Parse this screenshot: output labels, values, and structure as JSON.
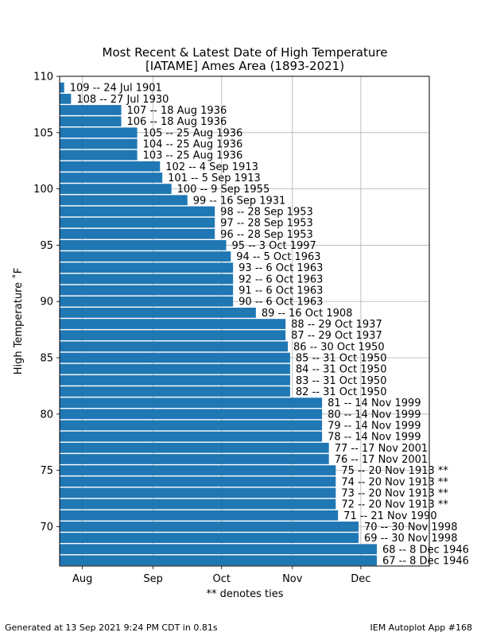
{
  "chart_data": {
    "type": "bar",
    "orientation": "horizontal",
    "title": "Most Recent & Latest Date of High Temperature",
    "subtitle": "[IATAME] Ames Area (1893-2021)",
    "xlabel": "** denotes ties",
    "ylabel": "High Temperature ˚F",
    "ylim": [
      66.5,
      110
    ],
    "yticks": [
      70,
      75,
      80,
      85,
      90,
      95,
      100,
      105,
      110
    ],
    "xlim": [
      "2000-07-22",
      "2000-12-31"
    ],
    "xticks": [
      {
        "date": "2000-08-01",
        "label": "Aug"
      },
      {
        "date": "2000-09-01",
        "label": "Sep"
      },
      {
        "date": "2000-10-01",
        "label": "Oct"
      },
      {
        "date": "2000-11-01",
        "label": "Nov"
      },
      {
        "date": "2000-12-01",
        "label": "Dec"
      }
    ],
    "grid": true,
    "bar_color": "#1f77b4",
    "bars": [
      {
        "temp": 109,
        "date": "2000-07-24",
        "label": "109 -- 24 Jul 1901"
      },
      {
        "temp": 108,
        "date": "2000-07-27",
        "label": "108 -- 27 Jul 1930"
      },
      {
        "temp": 107,
        "date": "2000-08-18",
        "label": "107 -- 18 Aug 1936"
      },
      {
        "temp": 106,
        "date": "2000-08-18",
        "label": "106 -- 18 Aug 1936"
      },
      {
        "temp": 105,
        "date": "2000-08-25",
        "label": "105 -- 25 Aug 1936"
      },
      {
        "temp": 104,
        "date": "2000-08-25",
        "label": "104 -- 25 Aug 1936"
      },
      {
        "temp": 103,
        "date": "2000-08-25",
        "label": "103 -- 25 Aug 1936"
      },
      {
        "temp": 102,
        "date": "2000-09-04",
        "label": "102 -- 4 Sep 1913"
      },
      {
        "temp": 101,
        "date": "2000-09-05",
        "label": "101 -- 5 Sep 1913"
      },
      {
        "temp": 100,
        "date": "2000-09-09",
        "label": "100 -- 9 Sep 1955"
      },
      {
        "temp": 99,
        "date": "2000-09-16",
        "label": "99 -- 16 Sep 1931"
      },
      {
        "temp": 98,
        "date": "2000-09-28",
        "label": "98 -- 28 Sep 1953"
      },
      {
        "temp": 97,
        "date": "2000-09-28",
        "label": "97 -- 28 Sep 1953"
      },
      {
        "temp": 96,
        "date": "2000-09-28",
        "label": "96 -- 28 Sep 1953"
      },
      {
        "temp": 95,
        "date": "2000-10-03",
        "label": "95 -- 3 Oct 1997"
      },
      {
        "temp": 94,
        "date": "2000-10-05",
        "label": "94 -- 5 Oct 1963"
      },
      {
        "temp": 93,
        "date": "2000-10-06",
        "label": "93 -- 6 Oct 1963"
      },
      {
        "temp": 92,
        "date": "2000-10-06",
        "label": "92 -- 6 Oct 1963"
      },
      {
        "temp": 91,
        "date": "2000-10-06",
        "label": "91 -- 6 Oct 1963"
      },
      {
        "temp": 90,
        "date": "2000-10-06",
        "label": "90 -- 6 Oct 1963"
      },
      {
        "temp": 89,
        "date": "2000-10-16",
        "label": "89 -- 16 Oct 1908"
      },
      {
        "temp": 88,
        "date": "2000-10-29",
        "label": "88 -- 29 Oct 1937"
      },
      {
        "temp": 87,
        "date": "2000-10-29",
        "label": "87 -- 29 Oct 1937"
      },
      {
        "temp": 86,
        "date": "2000-10-30",
        "label": "86 -- 30 Oct 1950"
      },
      {
        "temp": 85,
        "date": "2000-10-31",
        "label": "85 -- 31 Oct 1950"
      },
      {
        "temp": 84,
        "date": "2000-10-31",
        "label": "84 -- 31 Oct 1950"
      },
      {
        "temp": 83,
        "date": "2000-10-31",
        "label": "83 -- 31 Oct 1950"
      },
      {
        "temp": 82,
        "date": "2000-10-31",
        "label": "82 -- 31 Oct 1950"
      },
      {
        "temp": 81,
        "date": "2000-11-14",
        "label": "81 -- 14 Nov 1999"
      },
      {
        "temp": 80,
        "date": "2000-11-14",
        "label": "80 -- 14 Nov 1999"
      },
      {
        "temp": 79,
        "date": "2000-11-14",
        "label": "79 -- 14 Nov 1999"
      },
      {
        "temp": 78,
        "date": "2000-11-14",
        "label": "78 -- 14 Nov 1999"
      },
      {
        "temp": 77,
        "date": "2000-11-17",
        "label": "77 -- 17 Nov 2001"
      },
      {
        "temp": 76,
        "date": "2000-11-17",
        "label": "76 -- 17 Nov 2001"
      },
      {
        "temp": 75,
        "date": "2000-11-20",
        "label": "75 -- 20 Nov 1913 **"
      },
      {
        "temp": 74,
        "date": "2000-11-20",
        "label": "74 -- 20 Nov 1913 **"
      },
      {
        "temp": 73,
        "date": "2000-11-20",
        "label": "73 -- 20 Nov 1913 **"
      },
      {
        "temp": 72,
        "date": "2000-11-20",
        "label": "72 -- 20 Nov 1913 **"
      },
      {
        "temp": 71,
        "date": "2000-11-21",
        "label": "71 -- 21 Nov 1990"
      },
      {
        "temp": 70,
        "date": "2000-11-30",
        "label": "70 -- 30 Nov 1998"
      },
      {
        "temp": 69,
        "date": "2000-11-30",
        "label": "69 -- 30 Nov 1998"
      },
      {
        "temp": 68,
        "date": "2000-12-08",
        "label": "68 -- 8 Dec 1946"
      },
      {
        "temp": 67,
        "date": "2000-12-08",
        "label": "67 -- 8 Dec 1946"
      }
    ]
  },
  "footer": {
    "left": "Generated at 13 Sep 2021 9:24 PM CDT in 0.81s",
    "right": "IEM Autoplot App #168"
  }
}
